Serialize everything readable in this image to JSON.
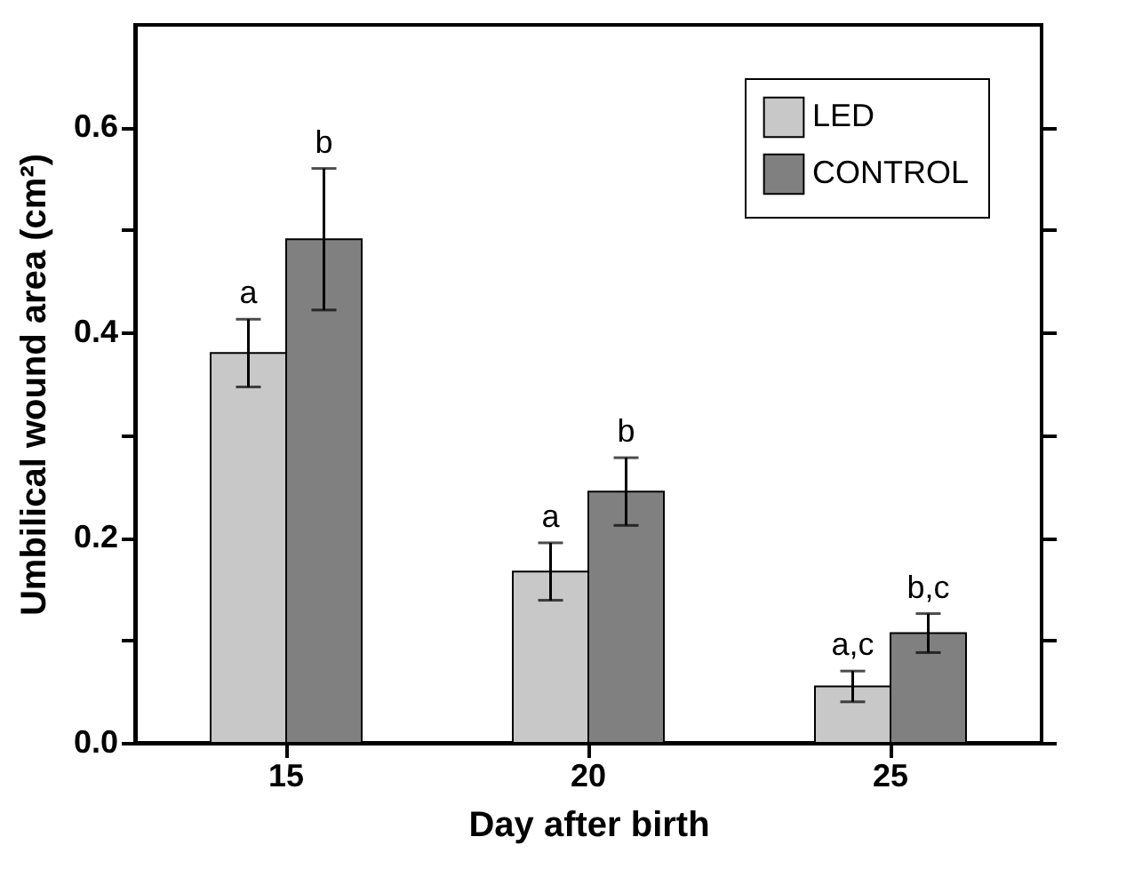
{
  "chart_data": {
    "type": "bar",
    "xlabel": "Day after birth",
    "ylabel": "Umbilical wound area (cm²)",
    "categories": [
      "15",
      "20",
      "25"
    ],
    "series": [
      {
        "name": "LED",
        "color": "#c8c8c8",
        "values": [
          0.38,
          0.167,
          0.055
        ],
        "errors": [
          0.033,
          0.028,
          0.015
        ],
        "value_labels": [
          "a",
          "a",
          "a,c"
        ]
      },
      {
        "name": "CONTROL",
        "color": "#808080",
        "values": [
          0.491,
          0.245,
          0.107
        ],
        "errors": [
          0.069,
          0.033,
          0.019
        ],
        "value_labels": [
          "b",
          "b",
          "b,c"
        ]
      }
    ],
    "ylim": [
      0,
      0.7
    ],
    "yticks": [
      {
        "value": 0,
        "label": "0.0"
      },
      {
        "value": 0.1,
        "label": null
      },
      {
        "value": 0.2,
        "label": "0.2"
      },
      {
        "value": 0.3,
        "label": null
      },
      {
        "value": 0.4,
        "label": "0.4"
      },
      {
        "value": 0.5,
        "label": null
      },
      {
        "value": 0.6,
        "label": "0.6"
      }
    ],
    "grid": false,
    "legend": "top right"
  }
}
